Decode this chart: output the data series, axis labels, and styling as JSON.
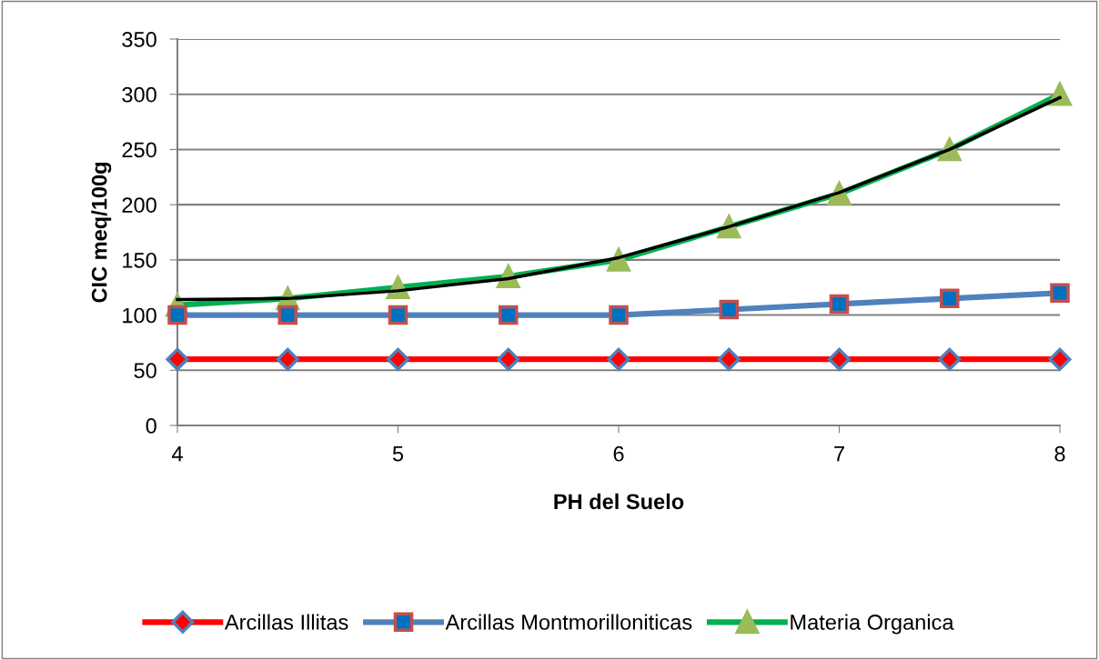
{
  "chart_data": {
    "type": "line",
    "xlabel": "PH del Suelo",
    "ylabel": "CIC meq/100g",
    "x": [
      4,
      4.5,
      5,
      5.5,
      6,
      6.5,
      7,
      7.5,
      8
    ],
    "series": [
      {
        "name": "Arcillas Illitas",
        "color": "#ff0000",
        "marker": "diamond",
        "values": [
          60,
          60,
          60,
          60,
          60,
          60,
          60,
          60,
          60
        ]
      },
      {
        "name": "Arcillas Montmorilloniticas",
        "color": "#4f81bd",
        "marker": "square",
        "values": [
          100,
          100,
          100,
          100,
          100,
          105,
          110,
          115,
          120
        ]
      },
      {
        "name": "Materia Organica",
        "color": "#00b050",
        "marker": "triangle",
        "values": [
          109,
          115,
          125,
          135,
          150,
          180,
          210,
          250,
          300
        ]
      },
      {
        "type": "line",
        "color": "#000000",
        "marker": "none",
        "values": [
          114,
          115,
          122,
          133,
          152,
          180,
          211,
          250,
          297
        ]
      }
    ],
    "xlim": [
      4,
      8
    ],
    "xticks": [
      4,
      5,
      6,
      7,
      8
    ],
    "ylim": [
      0,
      350
    ],
    "yticks": [
      0,
      50,
      100,
      150,
      200,
      250,
      300,
      350
    ],
    "grid": "y",
    "legend": "bottom",
    "line_style": "solid"
  }
}
